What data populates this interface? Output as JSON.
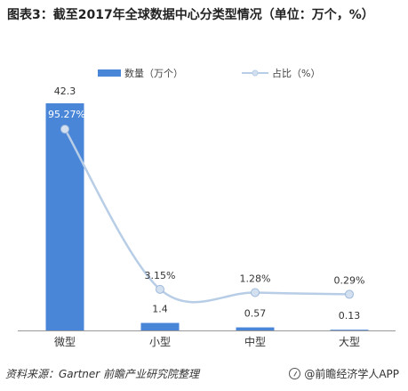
{
  "title": "图表3：截至2017年全球数据中心分类型情况（单位：万个，%）",
  "source": "资料来源：Gartner 前瞻产业研究院整理",
  "brand": "@前瞻经济学人APP",
  "colors": {
    "bar": "#4a86d8",
    "line": "#b8cde6",
    "marker": "#d3e0f0"
  },
  "chart_data": {
    "type": "bar",
    "categories": [
      "微型",
      "小型",
      "中型",
      "大型"
    ],
    "series": [
      {
        "name": "数量（万个）",
        "type": "bar",
        "values": [
          42.3,
          1.4,
          0.57,
          0.13
        ],
        "labels": [
          "42.3",
          "1.4",
          "0.57",
          "0.13"
        ]
      },
      {
        "name": "占比（%）",
        "type": "line",
        "values": [
          95.27,
          3.15,
          1.28,
          0.29
        ],
        "labels": [
          "95.27%",
          "3.15%",
          "1.28%",
          "0.29%"
        ]
      }
    ],
    "legend": "top-center",
    "grid": false
  }
}
